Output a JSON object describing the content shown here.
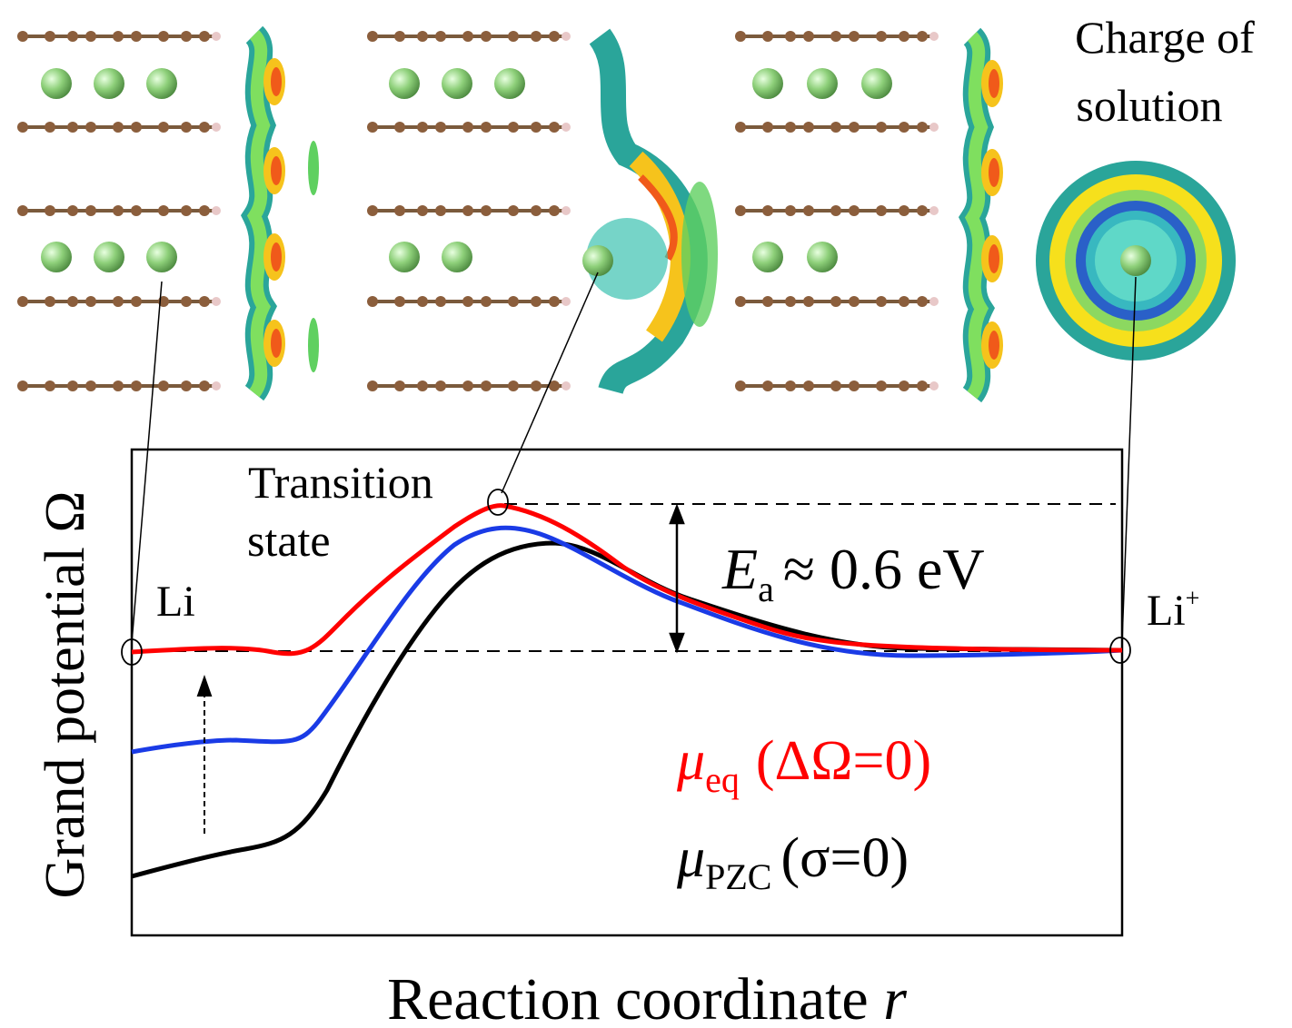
{
  "panels": {
    "solution_label": [
      "Charge of",
      "solution"
    ]
  },
  "plot": {
    "y_label": "Grand potential Ω",
    "x_label": {
      "text": "Reaction coordinate",
      "var": "r"
    },
    "transition_label": [
      "Transition",
      "state"
    ],
    "left_label": "Li",
    "right_label": {
      "base": "Li",
      "sup": "+"
    },
    "barrier": {
      "symbol": "E",
      "sub": "a",
      "text": "≈ 0.6 eV"
    },
    "legend": [
      {
        "symbol": "μ",
        "sub": "eq",
        "text": "(ΔΩ=0)"
      },
      {
        "symbol": "μ",
        "sub": "PZC",
        "text": "(σ=0)"
      }
    ]
  }
}
